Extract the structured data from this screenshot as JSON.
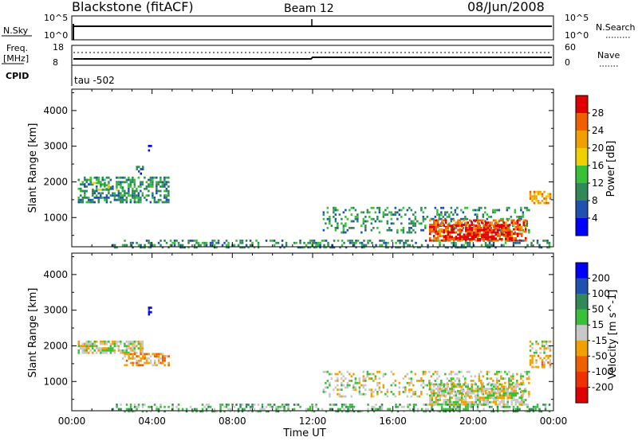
{
  "header": {
    "station": "Blackstone (fitACF)",
    "beam": "Beam 12",
    "date": "08/Jun/2008"
  },
  "summary_panels": {
    "nsky_label": "N.Sky",
    "nsky_ticks": [
      "10^5",
      "10^0"
    ],
    "nsearch_label": "N.Search",
    "nsearch_ticks": [
      "10^5",
      "10^0"
    ],
    "freq_label_1": "Freq.",
    "freq_label_2": "[MHz]",
    "freq_ticks": [
      "18",
      "8"
    ],
    "nave_label": "Nave",
    "nave_ticks": [
      "60",
      "0"
    ],
    "cpid_label": "CPID",
    "cpid_text": "tau  -502"
  },
  "chart_data": [
    {
      "type": "heatmap",
      "panel": "power",
      "xlabel": "",
      "ylabel": "Slant Range [km]",
      "xlim": [
        0,
        24
      ],
      "ylim": [
        180,
        4600
      ],
      "yticks": [
        "1000",
        "2000",
        "3000",
        "4000"
      ],
      "colorbar_label": "Power [dB]",
      "colorbar_ticks": [
        "4",
        "8",
        "12",
        "16",
        "20",
        "24",
        "28"
      ],
      "colorbar_colors": [
        "#0000ff",
        "#2050b0",
        "#2f8a58",
        "#38c038",
        "#f0d000",
        "#f0a000",
        "#f06000",
        "#e00000"
      ],
      "patches": [
        {
          "t0": 0.3,
          "t1": 4.8,
          "r0": 1450,
          "r1": 2150,
          "density": 0.5,
          "level": 2
        },
        {
          "t0": 1.0,
          "t1": 2.5,
          "r0": 1800,
          "r1": 2000,
          "density": 0.45,
          "level": 3
        },
        {
          "t0": 3.2,
          "t1": 3.5,
          "r0": 2200,
          "r1": 2450,
          "density": 0.4,
          "level": 1
        },
        {
          "t0": 3.8,
          "t1": 3.95,
          "r0": 2850,
          "r1": 3100,
          "density": 0.5,
          "level": 0
        },
        {
          "t0": 2.0,
          "t1": 23.8,
          "r0": 180,
          "r1": 380,
          "density": 0.35,
          "level": 2
        },
        {
          "t0": 12.5,
          "t1": 22.8,
          "r0": 600,
          "r1": 1300,
          "density": 0.28,
          "level": 2
        },
        {
          "t0": 17.8,
          "t1": 22.6,
          "r0": 380,
          "r1": 950,
          "density": 0.6,
          "level": 6
        },
        {
          "t0": 18.5,
          "t1": 21.8,
          "r0": 400,
          "r1": 800,
          "density": 0.6,
          "level": 7
        },
        {
          "t0": 22.8,
          "t1": 23.8,
          "r0": 1400,
          "r1": 1750,
          "density": 0.6,
          "level": 5
        }
      ]
    },
    {
      "type": "heatmap",
      "panel": "velocity",
      "xlabel": "Time UT",
      "ylabel": "Slant Range [km]",
      "xlim": [
        0,
        24
      ],
      "ylim": [
        180,
        4600
      ],
      "xticks": [
        "00:00",
        "04:00",
        "08:00",
        "12:00",
        "16:00",
        "20:00",
        "00:00"
      ],
      "yticks": [
        "1000",
        "2000",
        "3000",
        "4000"
      ],
      "colorbar_label": "Velocity [m s^-1]",
      "colorbar_ticks": [
        "200",
        "100",
        "50",
        "15",
        "-15",
        "-50",
        "-100",
        "-200"
      ],
      "colorbar_colors": [
        "#0000ff",
        "#2050b0",
        "#2f8a58",
        "#38c038",
        "#c8c8c8",
        "#f0a000",
        "#f06000",
        "#f03000",
        "#e00000"
      ],
      "patches": [
        {
          "t0": 0.3,
          "t1": 3.5,
          "r0": 1800,
          "r1": 2150,
          "density": 0.7,
          "level": 4
        },
        {
          "t0": 2.5,
          "t1": 4.8,
          "r0": 1450,
          "r1": 1800,
          "density": 0.5,
          "level": 5
        },
        {
          "t0": 3.8,
          "t1": 3.95,
          "r0": 2850,
          "r1": 3100,
          "density": 0.5,
          "level": 0
        },
        {
          "t0": 2.0,
          "t1": 23.8,
          "r0": 180,
          "r1": 380,
          "density": 0.35,
          "level": 3
        },
        {
          "t0": 12.5,
          "t1": 22.8,
          "r0": 600,
          "r1": 1300,
          "density": 0.3,
          "level": 4
        },
        {
          "t0": 17.8,
          "t1": 22.6,
          "r0": 380,
          "r1": 950,
          "density": 0.7,
          "level": 4
        },
        {
          "t0": 22.8,
          "t1": 23.8,
          "r0": 1400,
          "r1": 1750,
          "density": 0.6,
          "level": 5
        },
        {
          "t0": 22.8,
          "t1": 23.8,
          "r0": 1800,
          "r1": 2150,
          "density": 0.5,
          "level": 4
        }
      ]
    }
  ]
}
